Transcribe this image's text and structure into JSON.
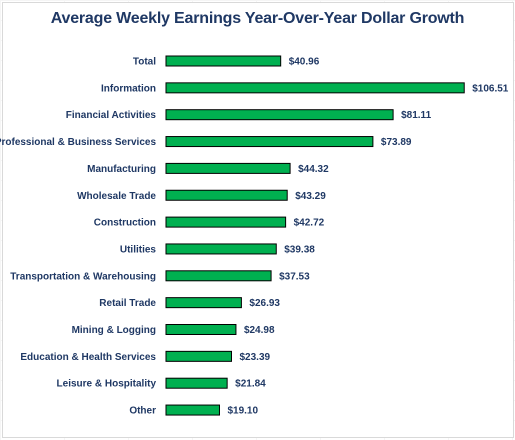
{
  "chart_data": {
    "type": "bar",
    "orientation": "horizontal",
    "title": "Average Weekly Earnings Year-Over-Year Dollar Growth",
    "categories": [
      "Total",
      "Information",
      "Financial Activities",
      "Professional & Business Services",
      "Manufacturing",
      "Wholesale Trade",
      "Construction",
      "Utilities",
      "Transportation & Warehousing",
      "Retail Trade",
      "Mining & Logging",
      "Education & Health Services",
      "Leisure & Hospitality",
      "Other"
    ],
    "values": [
      40.96,
      106.51,
      81.11,
      73.89,
      44.32,
      43.29,
      42.72,
      39.38,
      37.53,
      26.93,
      24.98,
      23.39,
      21.84,
      19.1
    ],
    "value_labels": [
      "$40.96",
      "$106.51",
      "$81.11",
      "$73.89",
      "$44.32",
      "$43.29",
      "$42.72",
      "$39.38",
      "$37.53",
      "$26.93",
      "$24.98",
      "$23.39",
      "$21.84",
      "$19.10"
    ],
    "xlim": [
      0,
      110
    ],
    "grid": false,
    "legend": "none",
    "colors": {
      "bar": "#00b050",
      "bar_outline": "#000000",
      "text": "#1f3864"
    }
  }
}
